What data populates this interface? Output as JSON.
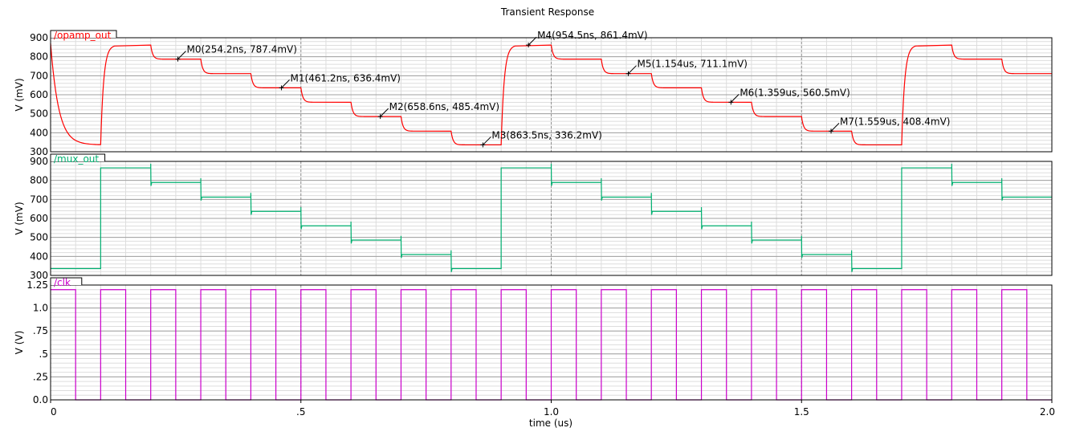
{
  "chart_data": {
    "type": "line",
    "title": "Transient Response",
    "xlabel": "time (us)",
    "xlim": [
      0,
      2.0
    ],
    "x_ticks": [
      {
        "value": 0,
        "label": "0"
      },
      {
        "value": 0.5,
        "label": ".5"
      },
      {
        "value": 1.0,
        "label": "1.0"
      },
      {
        "value": 1.5,
        "label": "1.5"
      },
      {
        "value": 2.0,
        "label": "2.0"
      }
    ],
    "grid": true,
    "panels": [
      {
        "id": "opamp",
        "signal": "/opamp_out",
        "color": "#ff0000",
        "ylabel": "V (mV)",
        "ylim": [
          300,
          900
        ],
        "y_ticks": [
          {
            "value": 900,
            "label": "900"
          },
          {
            "value": 800,
            "label": "800"
          },
          {
            "value": 700,
            "label": "700"
          },
          {
            "value": 600,
            "label": "600"
          },
          {
            "value": 500,
            "label": "500"
          },
          {
            "value": 400,
            "label": "400"
          },
          {
            "value": 300,
            "label": "300"
          }
        ],
        "levels": [
          336.2,
          861.4,
          787.4,
          711.1,
          636.4,
          560.5,
          485.4,
          408.4,
          336.2,
          861.4,
          787.4,
          711.1,
          636.4,
          560.5,
          485.4,
          408.4,
          336.2,
          861.4,
          787.4,
          711.1
        ],
        "start": 870,
        "markers": [
          {
            "label": "M0(254.2ns, 787.4mV)",
            "x": 0.2542,
            "y": 787.4
          },
          {
            "label": "M1(461.2ns, 636.4mV)",
            "x": 0.4612,
            "y": 636.4
          },
          {
            "label": "M2(658.6ns, 485.4mV)",
            "x": 0.6586,
            "y": 485.4
          },
          {
            "label": "M3(863.5ns, 336.2mV)",
            "x": 0.8635,
            "y": 336.2
          },
          {
            "label": "M4(954.5ns, 861.4mV)",
            "x": 0.9545,
            "y": 861.4
          },
          {
            "label": "M5(1.154us, 711.1mV)",
            "x": 1.154,
            "y": 711.1
          },
          {
            "label": "M6(1.359us, 560.5mV)",
            "x": 1.359,
            "y": 560.5
          },
          {
            "label": "M7(1.559us, 408.4mV)",
            "x": 1.559,
            "y": 408.4
          }
        ]
      },
      {
        "id": "mux",
        "signal": "/mux_out",
        "color": "#00b070",
        "ylabel": "V (mV)",
        "ylim": [
          300,
          900
        ],
        "y_ticks": [
          {
            "value": 900,
            "label": "900"
          },
          {
            "value": 800,
            "label": "800"
          },
          {
            "value": 700,
            "label": "700"
          },
          {
            "value": 600,
            "label": "600"
          },
          {
            "value": 500,
            "label": "500"
          },
          {
            "value": 400,
            "label": "400"
          },
          {
            "value": 300,
            "label": "300"
          }
        ],
        "levels": [
          336,
          866,
          789,
          712,
          637,
          561,
          486,
          410,
          336,
          866,
          789,
          712,
          637,
          561,
          486,
          410,
          336,
          866,
          789,
          712
        ],
        "markers": []
      },
      {
        "id": "clk",
        "signal": "/clk",
        "color": "#cc00cc",
        "ylabel": "V (V)",
        "ylim": [
          0,
          1.25
        ],
        "y_ticks": [
          {
            "value": 1.25,
            "label": "1.25"
          },
          {
            "value": 1.0,
            "label": "1.0"
          },
          {
            "value": 0.75,
            "label": ".75"
          },
          {
            "value": 0.5,
            "label": ".5"
          },
          {
            "value": 0.25,
            "label": ".25"
          },
          {
            "value": 0.0,
            "label": "0.0"
          }
        ],
        "period_us": 0.1,
        "pulse_width_us": 0.05,
        "high": 1.2,
        "low": 0.0,
        "markers": []
      }
    ]
  }
}
